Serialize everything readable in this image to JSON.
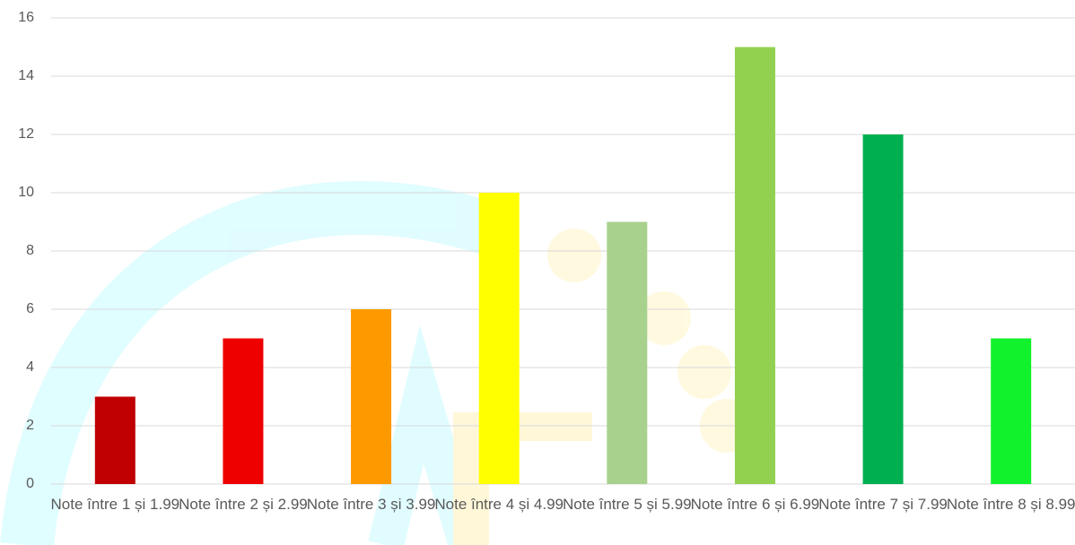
{
  "chart_data": {
    "type": "bar",
    "categories": [
      "Note între 1 și 1.99",
      "Note între 2 și 2.99",
      "Note între 3 și 3.99",
      "Note între 4 și 4.99",
      "Note între 5 și 5.99",
      "Note între 6 și 6.99",
      "Note între 7 și 7.99",
      "Note între 8 și 8.99"
    ],
    "values": [
      3,
      5,
      6,
      10,
      9,
      15,
      12,
      5
    ],
    "colors": [
      "#c00000",
      "#ee0000",
      "#ff9900",
      "#ffff00",
      "#a9d18e",
      "#92d050",
      "#00b050",
      "#11f22c"
    ],
    "ylim": [
      0,
      16
    ],
    "yticks": [
      0,
      2,
      4,
      6,
      8,
      10,
      12,
      14,
      16
    ],
    "grid": true
  }
}
